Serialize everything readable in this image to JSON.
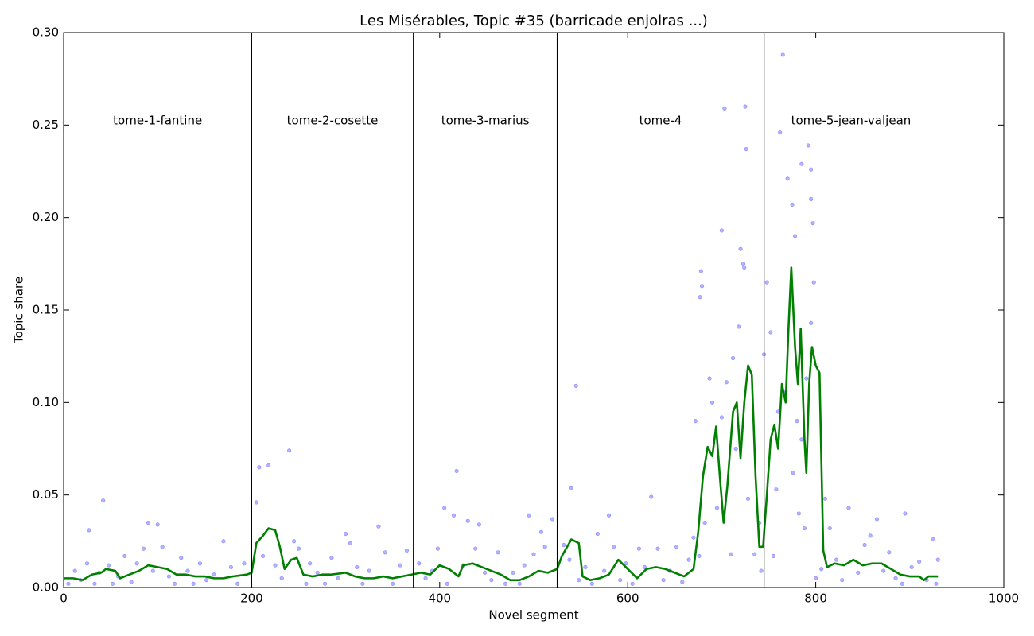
{
  "chart_data": {
    "type": "scatter",
    "title": "Les Misérables, Topic #35 (barricade enjolras ...)",
    "x_label": "Novel segment",
    "y_label": "Topic share",
    "xlim": [
      0,
      1000
    ],
    "ylim": [
      0,
      0.3
    ],
    "xticks": [
      0,
      200,
      400,
      600,
      800,
      1000
    ],
    "yticks": [
      {
        "value": 0,
        "label": "0.00"
      },
      {
        "value": 0.05,
        "label": "0.05"
      },
      {
        "value": 0.1,
        "label": "0.10"
      },
      {
        "value": 0.15,
        "label": "0.15"
      },
      {
        "value": 0.2,
        "label": "0.20"
      },
      {
        "value": 0.25,
        "label": "0.25"
      },
      {
        "value": 0.3,
        "label": "0.30"
      }
    ],
    "dividers": [
      200,
      372,
      525,
      745
    ],
    "sections": [
      "tome-1-fantine",
      "tome-2-cosette",
      "tome-3-marius",
      "tome-4",
      "tome-5-jean-valjean"
    ],
    "divider_color": "#000000",
    "series": [
      {
        "type": "scatter",
        "color": "#0000ff",
        "x": [
          27,
          42,
          90,
          100,
          205,
          208,
          218,
          240,
          300,
          335,
          405,
          418,
          495,
          520,
          545,
          540,
          580,
          625,
          677,
          678,
          679,
          687,
          700,
          703,
          712,
          718,
          720,
          723,
          725,
          726,
          724,
          745,
          748,
          752,
          765,
          762,
          770,
          775,
          778,
          785,
          792,
          795,
          795,
          797,
          795,
          798,
          790,
          785,
          780,
          760,
          705,
          700,
          690,
          715,
          740,
          810,
          835,
          865,
          895,
          925,
          5,
          12,
          18,
          25,
          33,
          38,
          48,
          52,
          58,
          65,
          72,
          78,
          85,
          95,
          105,
          112,
          118,
          125,
          132,
          138,
          145,
          152,
          160,
          170,
          178,
          185,
          192,
          212,
          225,
          232,
          245,
          250,
          258,
          262,
          270,
          278,
          285,
          292,
          305,
          312,
          318,
          325,
          342,
          350,
          358,
          365,
          378,
          385,
          392,
          398,
          408,
          415,
          425,
          430,
          438,
          442,
          448,
          455,
          462,
          470,
          478,
          485,
          490,
          500,
          508,
          512,
          532,
          538,
          548,
          555,
          562,
          568,
          575,
          585,
          592,
          598,
          605,
          612,
          618,
          632,
          638,
          645,
          652,
          658,
          665,
          670,
          672,
          676,
          682,
          695,
          710,
          728,
          735,
          742,
          755,
          758,
          768,
          776,
          782,
          788,
          800,
          806,
          815,
          822,
          828,
          845,
          852,
          858,
          872,
          878,
          885,
          892,
          902,
          910,
          918,
          928,
          930
        ],
        "values": [
          0.031,
          0.047,
          0.035,
          0.034,
          0.046,
          0.065,
          0.066,
          0.074,
          0.029,
          0.033,
          0.043,
          0.063,
          0.039,
          0.037,
          0.109,
          0.054,
          0.039,
          0.049,
          0.157,
          0.171,
          0.163,
          0.113,
          0.193,
          0.259,
          0.124,
          0.141,
          0.183,
          0.175,
          0.26,
          0.237,
          0.173,
          0.126,
          0.165,
          0.138,
          0.288,
          0.246,
          0.221,
          0.207,
          0.19,
          0.229,
          0.239,
          0.226,
          0.21,
          0.197,
          0.143,
          0.165,
          0.113,
          0.08,
          0.09,
          0.095,
          0.111,
          0.092,
          0.1,
          0.075,
          0.035,
          0.048,
          0.043,
          0.037,
          0.04,
          0.026,
          0.002,
          0.009,
          0.004,
          0.013,
          0.002,
          0.008,
          0.012,
          0.002,
          0.006,
          0.017,
          0.003,
          0.013,
          0.021,
          0.009,
          0.022,
          0.006,
          0.002,
          0.016,
          0.009,
          0.002,
          0.013,
          0.004,
          0.007,
          0.025,
          0.011,
          0.002,
          0.013,
          0.017,
          0.012,
          0.005,
          0.025,
          0.021,
          0.002,
          0.013,
          0.008,
          0.002,
          0.016,
          0.005,
          0.024,
          0.011,
          0.002,
          0.009,
          0.019,
          0.002,
          0.012,
          0.02,
          0.013,
          0.005,
          0.009,
          0.021,
          0.002,
          0.039,
          0.012,
          0.036,
          0.021,
          0.034,
          0.008,
          0.004,
          0.019,
          0.002,
          0.008,
          0.002,
          0.012,
          0.018,
          0.03,
          0.022,
          0.023,
          0.015,
          0.004,
          0.011,
          0.002,
          0.029,
          0.009,
          0.022,
          0.004,
          0.013,
          0.002,
          0.021,
          0.011,
          0.021,
          0.004,
          0.009,
          0.022,
          0.003,
          0.015,
          0.027,
          0.09,
          0.017,
          0.035,
          0.043,
          0.018,
          0.048,
          0.018,
          0.009,
          0.017,
          0.053,
          0.106,
          0.062,
          0.04,
          0.032,
          0.005,
          0.01,
          0.032,
          0.015,
          0.004,
          0.008,
          0.023,
          0.028,
          0.009,
          0.019,
          0.005,
          0.002,
          0.011,
          0.014,
          0.004,
          0.002,
          0.015
        ]
      },
      {
        "type": "line",
        "color": "#008000",
        "x": [
          0,
          10,
          20,
          30,
          40,
          45,
          55,
          60,
          70,
          80,
          90,
          100,
          110,
          120,
          130,
          140,
          150,
          160,
          170,
          180,
          195,
          200,
          205,
          212,
          218,
          225,
          230,
          235,
          242,
          248,
          255,
          265,
          275,
          285,
          300,
          310,
          320,
          330,
          340,
          350,
          360,
          370,
          380,
          390,
          400,
          410,
          420,
          425,
          435,
          445,
          455,
          465,
          475,
          485,
          495,
          505,
          515,
          525,
          530,
          540,
          548,
          552,
          560,
          570,
          580,
          590,
          600,
          610,
          620,
          630,
          640,
          650,
          660,
          670,
          675,
          680,
          685,
          690,
          694,
          698,
          702,
          706,
          712,
          716,
          720,
          724,
          728,
          732,
          736,
          740,
          744,
          748,
          752,
          756,
          760,
          764,
          768,
          771,
          774,
          778,
          781,
          784,
          788,
          790,
          793,
          796,
          800,
          804,
          808,
          812,
          820,
          830,
          840,
          850,
          860,
          870,
          880,
          890,
          900,
          910,
          915,
          920,
          930
        ],
        "values": [
          0.005,
          0.005,
          0.004,
          0.007,
          0.008,
          0.01,
          0.009,
          0.005,
          0.007,
          0.009,
          0.012,
          0.011,
          0.01,
          0.007,
          0.007,
          0.006,
          0.006,
          0.005,
          0.005,
          0.006,
          0.007,
          0.008,
          0.024,
          0.028,
          0.032,
          0.031,
          0.022,
          0.01,
          0.015,
          0.016,
          0.007,
          0.006,
          0.007,
          0.007,
          0.008,
          0.006,
          0.005,
          0.005,
          0.006,
          0.005,
          0.006,
          0.007,
          0.008,
          0.007,
          0.012,
          0.01,
          0.006,
          0.012,
          0.013,
          0.011,
          0.009,
          0.007,
          0.004,
          0.004,
          0.006,
          0.009,
          0.008,
          0.01,
          0.017,
          0.026,
          0.024,
          0.006,
          0.004,
          0.005,
          0.007,
          0.015,
          0.01,
          0.005,
          0.01,
          0.011,
          0.01,
          0.008,
          0.006,
          0.01,
          0.03,
          0.06,
          0.076,
          0.071,
          0.087,
          0.06,
          0.035,
          0.055,
          0.095,
          0.1,
          0.07,
          0.1,
          0.12,
          0.115,
          0.06,
          0.022,
          0.022,
          0.05,
          0.08,
          0.088,
          0.075,
          0.11,
          0.1,
          0.14,
          0.173,
          0.13,
          0.11,
          0.14,
          0.08,
          0.062,
          0.11,
          0.13,
          0.12,
          0.116,
          0.02,
          0.011,
          0.013,
          0.012,
          0.015,
          0.012,
          0.013,
          0.013,
          0.01,
          0.007,
          0.006,
          0.006,
          0.004,
          0.006,
          0.006
        ]
      }
    ]
  }
}
